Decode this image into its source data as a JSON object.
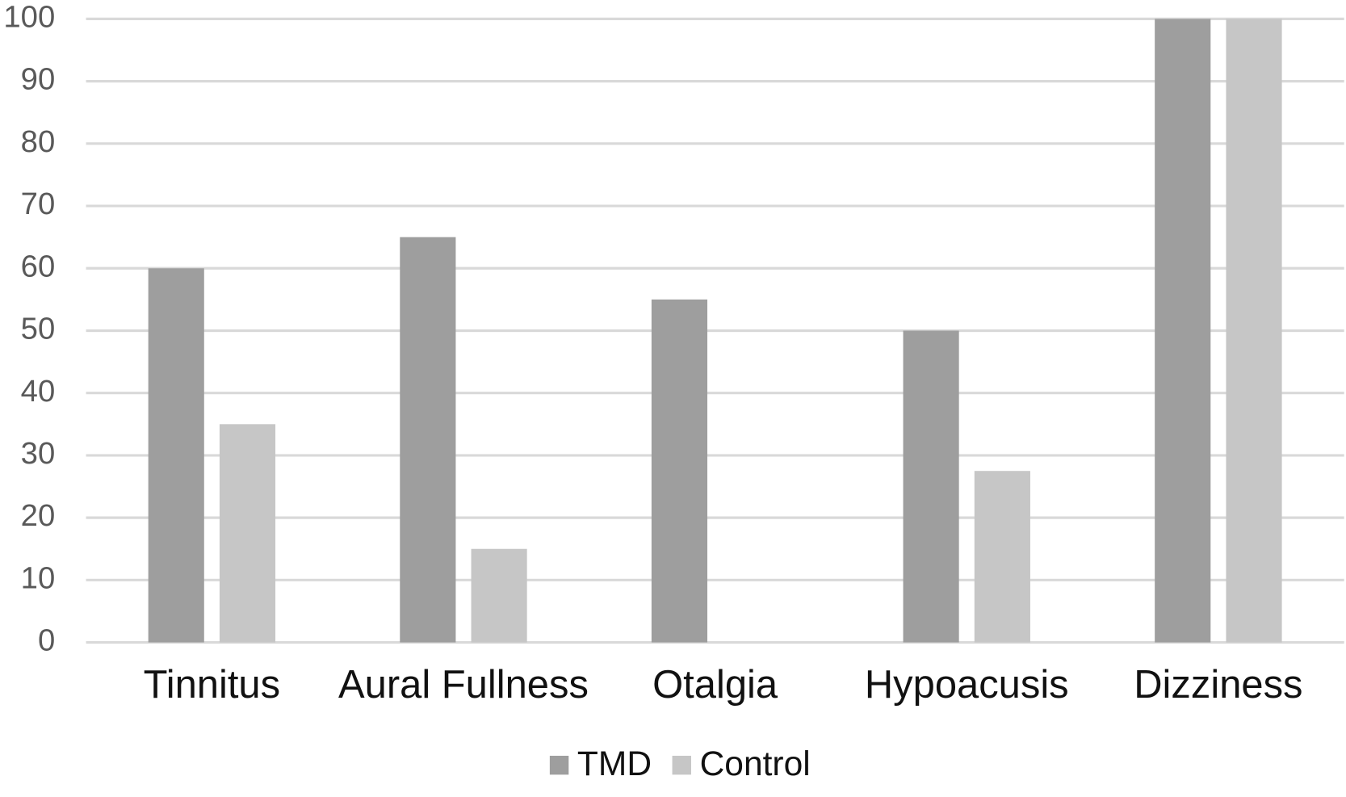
{
  "chart_data": {
    "type": "bar",
    "categories": [
      "Tinnitus",
      "Aural Fullness",
      "Otalgia",
      "Hypoacusis",
      "Dizziness"
    ],
    "series": [
      {
        "name": "TMD",
        "color": "#9e9e9e",
        "values": [
          60,
          65,
          55,
          50,
          100
        ]
      },
      {
        "name": "Control",
        "color": "#c6c6c6",
        "values": [
          35,
          15,
          0,
          27.5,
          100
        ]
      }
    ],
    "ylim": [
      0,
      100
    ],
    "yticks": [
      0,
      10,
      20,
      30,
      40,
      50,
      60,
      70,
      80,
      90,
      100
    ],
    "grid": true,
    "legend": "bottom"
  }
}
